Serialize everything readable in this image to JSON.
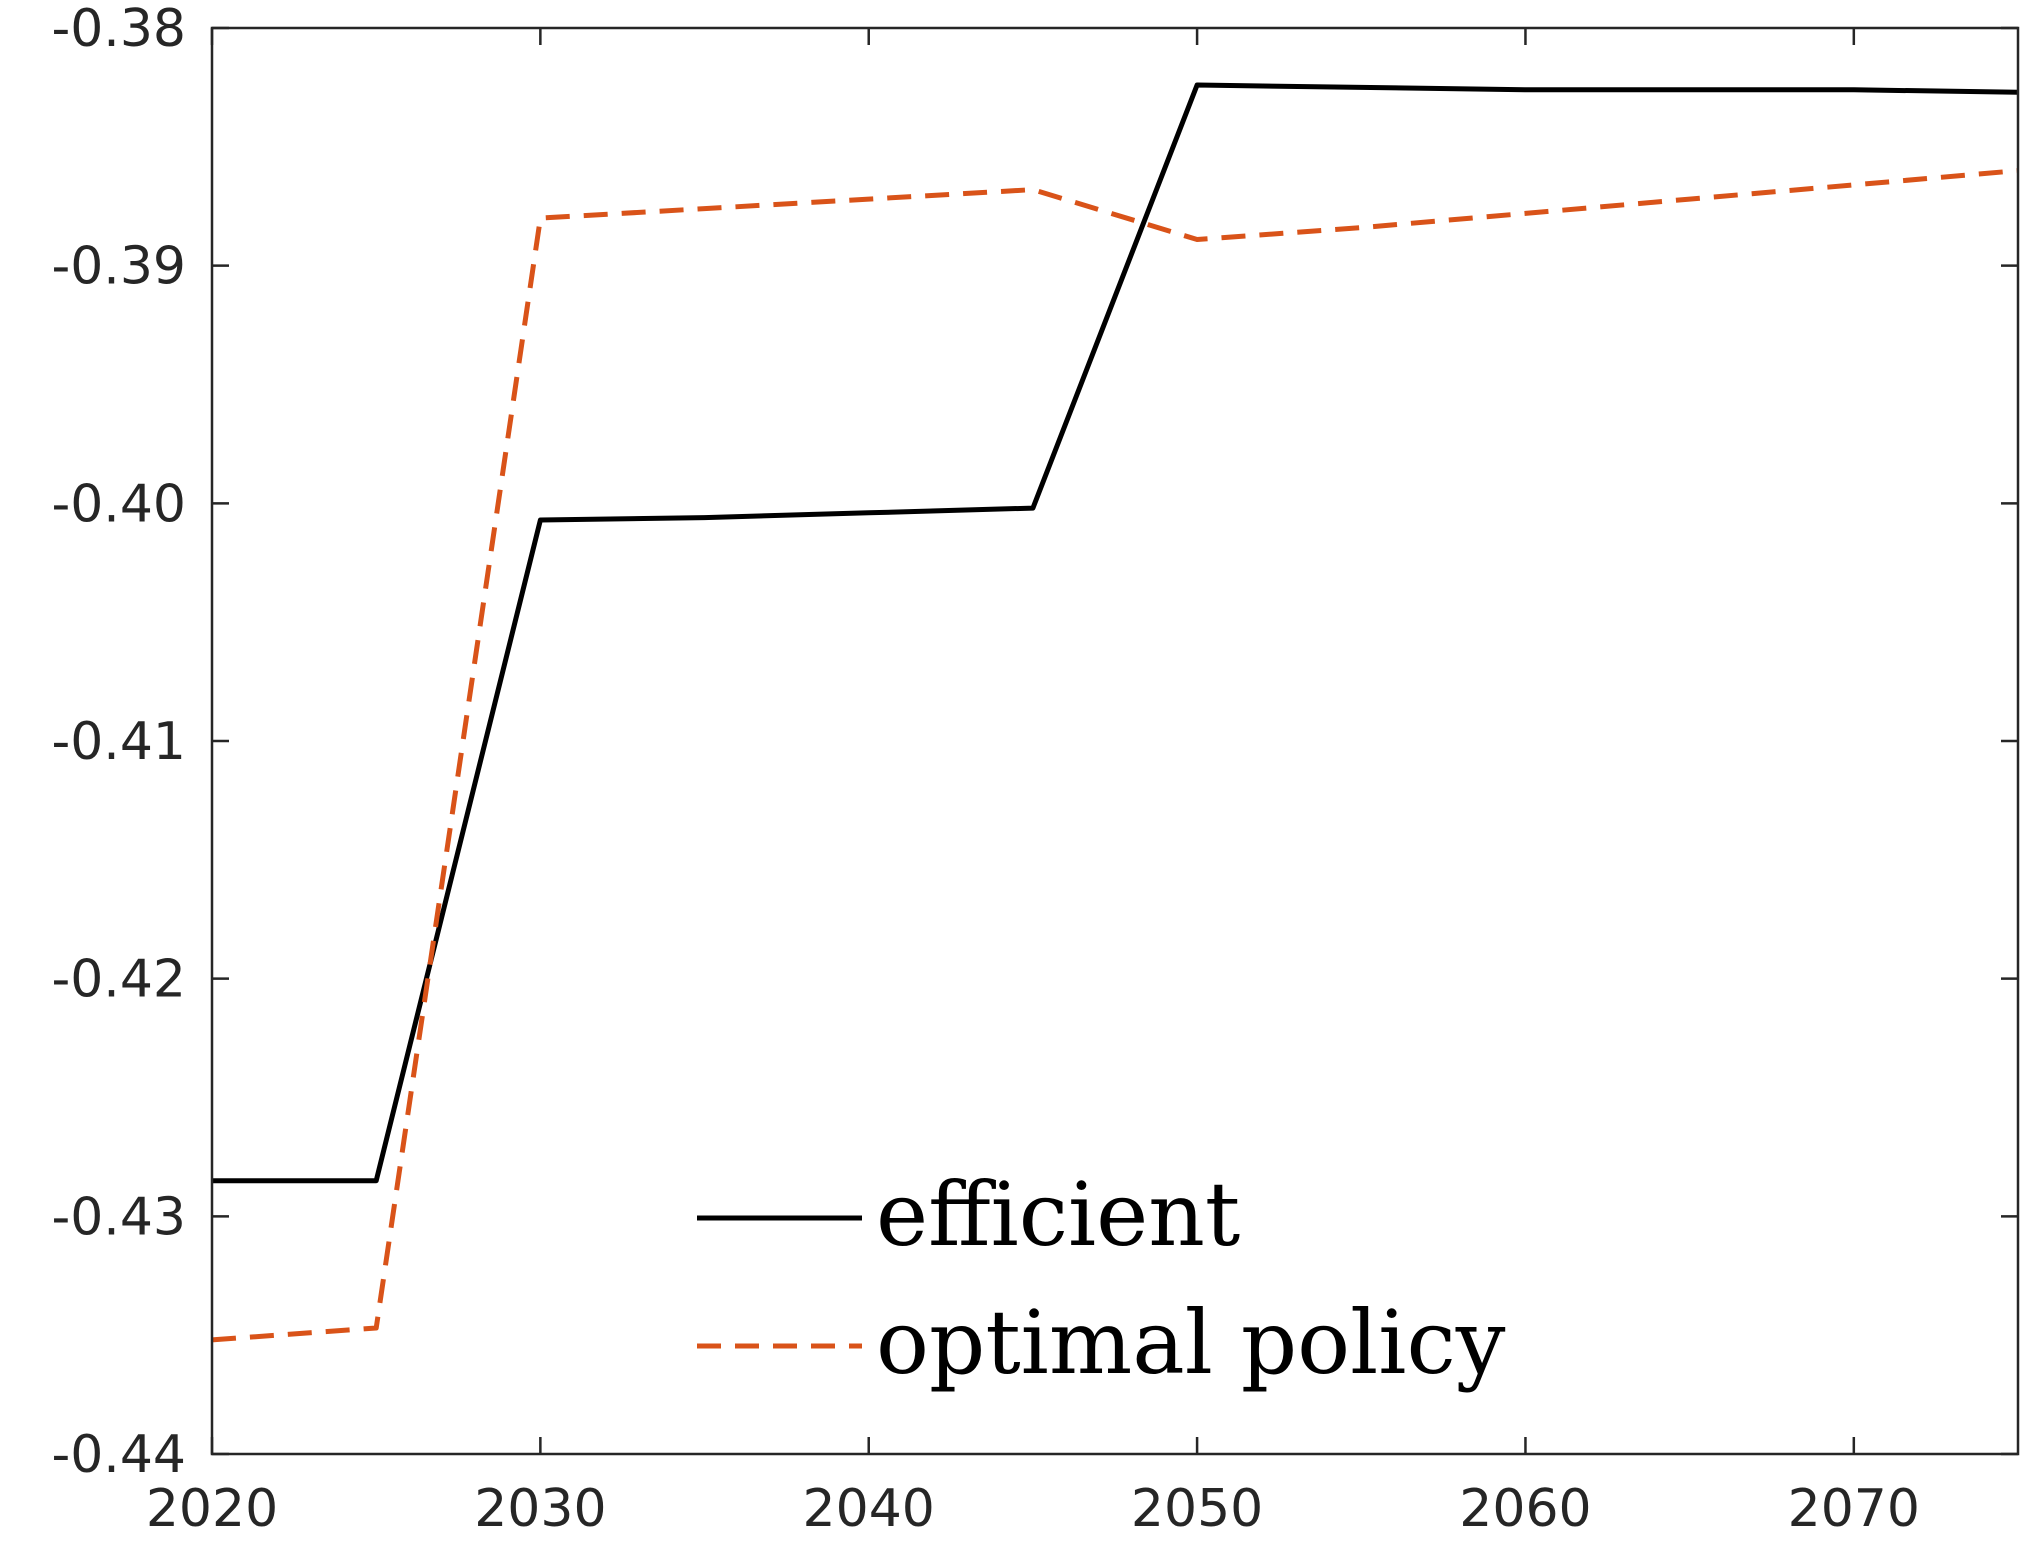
{
  "chart_data": {
    "type": "line",
    "x": [
      2020,
      2025,
      2030,
      2035,
      2040,
      2045,
      2050,
      2055,
      2060,
      2065,
      2070,
      2075
    ],
    "series": [
      {
        "name": "efficient",
        "color": "#000000",
        "style": "solid",
        "values": [
          -0.4285,
          -0.4285,
          -0.4007,
          -0.4006,
          -0.4004,
          -0.4002,
          -0.3824,
          -0.3825,
          -0.3826,
          -0.3826,
          -0.3826,
          -0.3827
        ]
      },
      {
        "name": "optimal policy",
        "color": "#d95319",
        "style": "dashed",
        "values": [
          -0.4352,
          -0.4347,
          -0.388,
          -0.3876,
          -0.3872,
          -0.3868,
          -0.3889,
          -0.3884,
          -0.3878,
          -0.3872,
          -0.3866,
          -0.386
        ]
      }
    ],
    "xlim": [
      2020,
      2075
    ],
    "ylim": [
      -0.44,
      -0.38
    ],
    "xticks": [
      "2020",
      "2030",
      "2040",
      "2050",
      "2060",
      "2070"
    ],
    "yticks": [
      "-0.38",
      "-0.39",
      "-0.40",
      "-0.41",
      "-0.42",
      "-0.43",
      "-0.44"
    ],
    "legend_position": "bottom-center",
    "grid": false
  }
}
